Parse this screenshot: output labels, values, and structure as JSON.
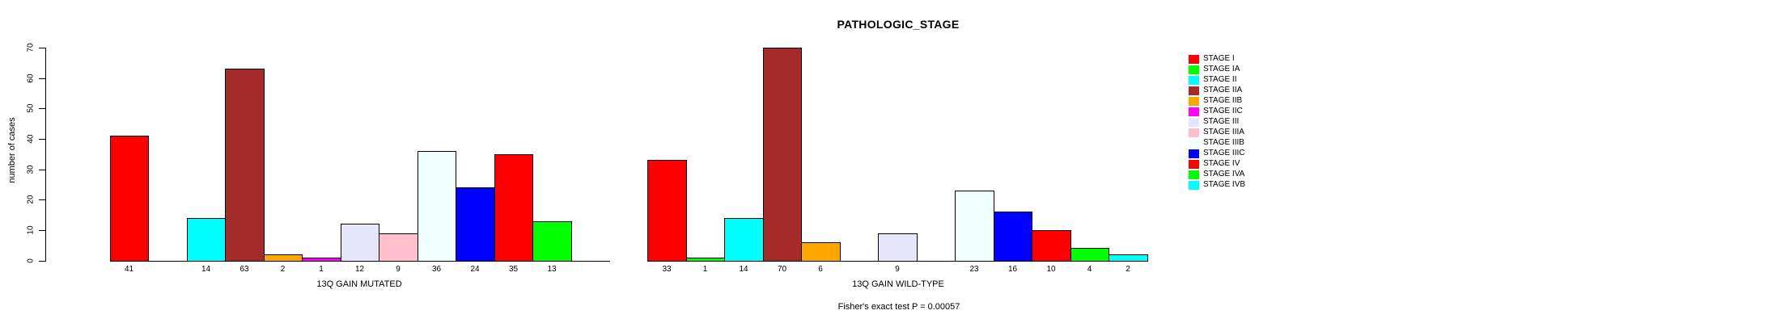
{
  "title": "PATHOLOGIC_STAGE",
  "chart_data": {
    "type": "bar",
    "title": "PATHOLOGIC_STAGE",
    "ylabel": "number of cases",
    "ylim": [
      0,
      70
    ],
    "yticks": [
      0,
      10,
      20,
      30,
      40,
      50,
      60,
      70
    ],
    "grid": false,
    "legend_position": "right",
    "categories": [
      "STAGE I",
      "STAGE IA",
      "STAGE II",
      "STAGE IIA",
      "STAGE IIB",
      "STAGE IIC",
      "STAGE III",
      "STAGE IIIA",
      "STAGE IIIB",
      "STAGE IIIC",
      "STAGE IV",
      "STAGE IVA",
      "STAGE IVB"
    ],
    "palette": [
      "#FF0000",
      "#00FF00",
      "#00FFFF",
      "#A52A2A",
      "#FFA500",
      "#FF00FF",
      "#E6E6FA",
      "#FFC0CB",
      "#F0FFFF",
      "#0000FF",
      "#FF0000",
      "#00FF00",
      "#00FFFF"
    ],
    "series": [
      {
        "name": "13Q GAIN MUTATED",
        "values": [
          41,
          0,
          14,
          63,
          2,
          1,
          12,
          9,
          36,
          24,
          35,
          13,
          0
        ]
      },
      {
        "name": "13Q GAIN WILD-TYPE",
        "values": [
          33,
          1,
          14,
          70,
          6,
          0,
          9,
          0,
          23,
          16,
          10,
          4,
          2
        ]
      }
    ],
    "bar_label_rule": "count shown under each bar, omitted when value is 0",
    "annotation": "Fisher's exact test P = 0.00057"
  }
}
